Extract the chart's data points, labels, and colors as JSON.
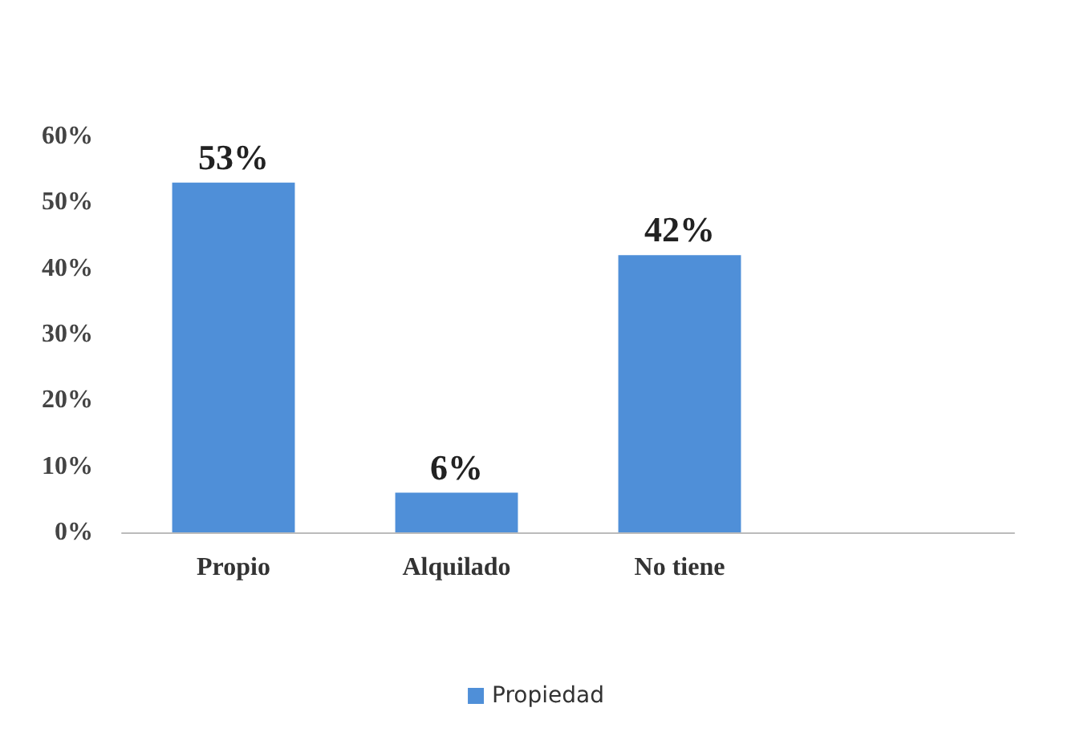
{
  "chart_data": {
    "type": "bar",
    "categories": [
      "Propio",
      "Alquilado",
      "No tiene",
      null
    ],
    "series": [
      {
        "name": "Propiedad",
        "color": "#4f8fd8",
        "values": [
          53,
          6,
          42,
          null
        ],
        "value_labels": [
          "53%",
          "6%",
          "42%",
          null
        ]
      }
    ],
    "ylim": [
      0,
      60
    ],
    "yticks": [
      {
        "value": 0,
        "label": "0%"
      },
      {
        "value": 10,
        "label": "10%"
      },
      {
        "value": 20,
        "label": "20%"
      },
      {
        "value": 30,
        "label": "30%"
      },
      {
        "value": 40,
        "label": "40%"
      },
      {
        "value": 50,
        "label": "50%"
      },
      {
        "value": 60,
        "label": "60%"
      }
    ],
    "legend": "bottom"
  }
}
